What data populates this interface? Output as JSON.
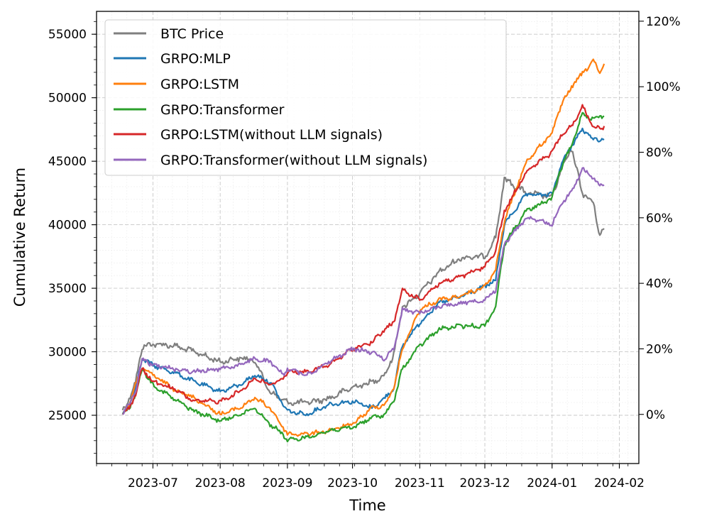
{
  "chart_data": {
    "type": "line",
    "xlabel": "Time",
    "ylabel": "Cumulative Return",
    "x_tick_labels": [
      "2023-07",
      "2023-08",
      "2023-09",
      "2023-10",
      "2023-11",
      "2023-12",
      "2024-01",
      "2024-02"
    ],
    "x_ticks": [
      "2023-07-01",
      "2023-08-01",
      "2023-09-01",
      "2023-10-01",
      "2023-11-01",
      "2023-12-01",
      "2024-01-01",
      "2024-02-01"
    ],
    "xlim": [
      "2023-06-05",
      "2024-02-10"
    ],
    "ylim_left": [
      21200,
      56800
    ],
    "y_left_ticks": [
      25000,
      30000,
      35000,
      40000,
      45000,
      50000,
      55000
    ],
    "y_left_tick_labels": [
      "25000",
      "30000",
      "35000",
      "40000",
      "45000",
      "50000",
      "55000"
    ],
    "ylim_right_percent": [
      -15,
      123
    ],
    "y_right_ticks": [
      0,
      20,
      40,
      60,
      80,
      100,
      120
    ],
    "y_right_tick_labels": [
      "0%",
      "20%",
      "40%",
      "60%",
      "80%",
      "100%",
      "120%"
    ],
    "grid": true,
    "legend_position": "top-left",
    "legend": [
      "BTC Price",
      "GRPO:MLP",
      "GRPO:LSTM",
      "GRPO:Transformer",
      "GRPO:LSTM(without LLM signals)",
      "GRPO:Transformer(without LLM signals)"
    ],
    "dates": [
      "2023-06-17",
      "2023-06-20",
      "2023-06-23",
      "2023-06-26",
      "2023-07-01",
      "2023-07-10",
      "2023-07-20",
      "2023-08-01",
      "2023-08-10",
      "2023-08-17",
      "2023-08-24",
      "2023-08-30",
      "2023-09-01",
      "2023-09-10",
      "2023-09-20",
      "2023-10-01",
      "2023-10-10",
      "2023-10-16",
      "2023-10-20",
      "2023-10-24",
      "2023-11-01",
      "2023-11-10",
      "2023-11-20",
      "2023-12-01",
      "2023-12-06",
      "2023-12-10",
      "2023-12-20",
      "2024-01-01",
      "2024-01-05",
      "2024-01-10",
      "2024-01-15",
      "2024-01-20",
      "2024-01-23",
      "2024-01-25"
    ],
    "series": [
      {
        "name": "BTC Price",
        "axis": "left",
        "color": "#7f7f7f",
        "values": [
          25400,
          26300,
          27600,
          30400,
          30600,
          30500,
          30000,
          29200,
          29500,
          29300,
          26800,
          26200,
          26000,
          26000,
          26300,
          27200,
          27600,
          28200,
          29800,
          33500,
          34600,
          36300,
          37400,
          37500,
          39000,
          43600,
          42500,
          42200,
          44200,
          46000,
          42500,
          41700,
          39200,
          39700
        ]
      },
      {
        "name": "GRPO:MLP",
        "axis": "right",
        "color": "#1f77b4",
        "values": [
          0,
          3,
          8,
          17,
          15,
          13,
          10,
          7,
          9,
          12,
          10,
          3,
          1,
          0,
          3,
          4,
          2,
          5,
          8,
          21,
          28,
          34,
          36,
          39,
          41,
          58,
          67,
          67,
          76,
          82,
          87,
          84,
          84,
          84
        ]
      },
      {
        "name": "GRPO:LSTM",
        "axis": "right",
        "color": "#ff7f0e",
        "values": [
          0,
          3,
          9,
          14,
          12,
          8,
          5,
          0,
          2,
          5,
          2,
          -4,
          -6,
          -6,
          -5,
          -3,
          2,
          3,
          8,
          20,
          32,
          35,
          36,
          39,
          44,
          59,
          77,
          86,
          94,
          100,
          104,
          108,
          104,
          107
        ]
      },
      {
        "name": "GRPO:Transformer",
        "axis": "right",
        "color": "#2ca02c",
        "values": [
          0,
          2,
          6,
          14,
          9,
          5,
          1,
          -2,
          0,
          2,
          -3,
          -6,
          -8,
          -7,
          -5,
          -4,
          -1,
          0,
          4,
          14,
          21,
          26,
          27,
          27,
          33,
          52,
          62,
          66,
          75,
          82,
          92,
          90,
          91,
          91
        ]
      },
      {
        "name": "GRPO:LSTM(without LLM signals)",
        "axis": "right",
        "color": "#d62728",
        "values": [
          0,
          2,
          6,
          14,
          10,
          8,
          4,
          4,
          7,
          11,
          9,
          11,
          13,
          13,
          15,
          20,
          22,
          26,
          28,
          38,
          35,
          40,
          42,
          45,
          50,
          62,
          74,
          80,
          85,
          88,
          94,
          88,
          87,
          88
        ]
      },
      {
        "name": "GRPO:Transformer(without LLM signals)",
        "axis": "right",
        "color": "#9467bd",
        "values": [
          0,
          3,
          7,
          17,
          15,
          14,
          13,
          14,
          15,
          17,
          16,
          12,
          14,
          12,
          16,
          20,
          19,
          17,
          20,
          32,
          31,
          33,
          34,
          35,
          38,
          52,
          60,
          58,
          64,
          68,
          75,
          72,
          70,
          70
        ]
      }
    ]
  }
}
